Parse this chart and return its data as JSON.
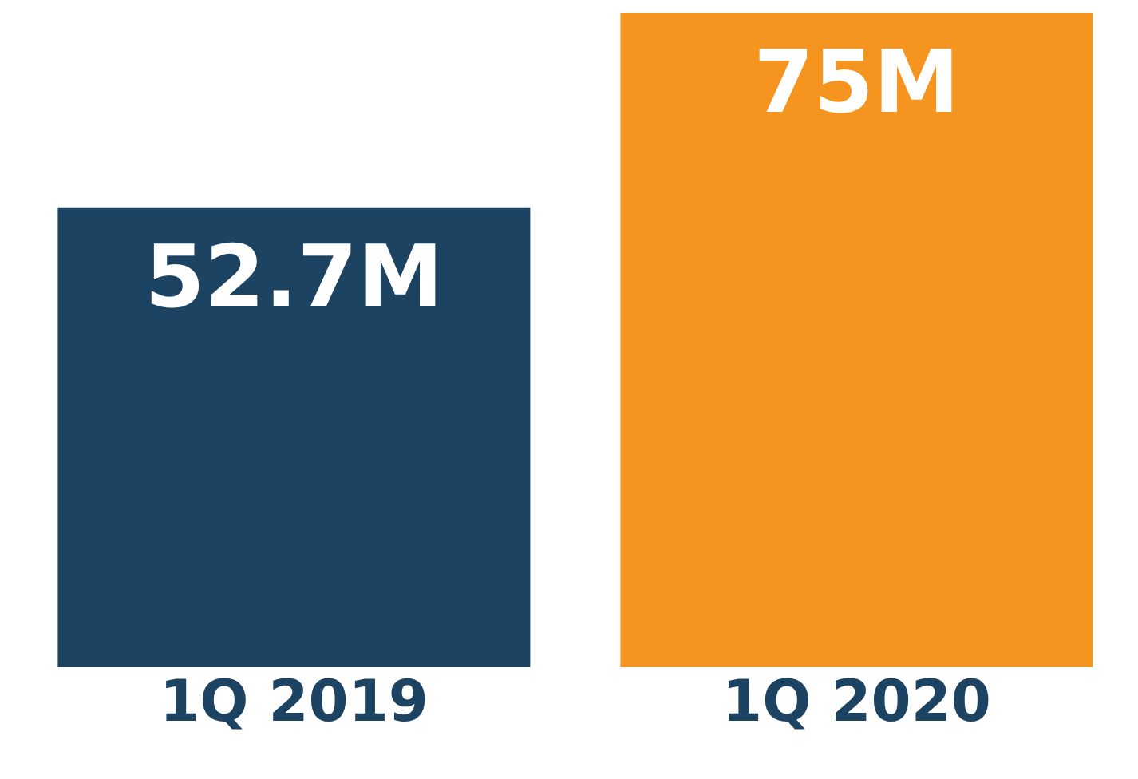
{
  "chart_data": {
    "type": "bar",
    "categories": [
      "1Q 2019",
      "1Q 2020"
    ],
    "values": [
      52.7,
      75
    ],
    "value_labels": [
      "52.7M",
      "75M"
    ],
    "colors": [
      "#1d4363",
      "#f5941f"
    ]
  }
}
